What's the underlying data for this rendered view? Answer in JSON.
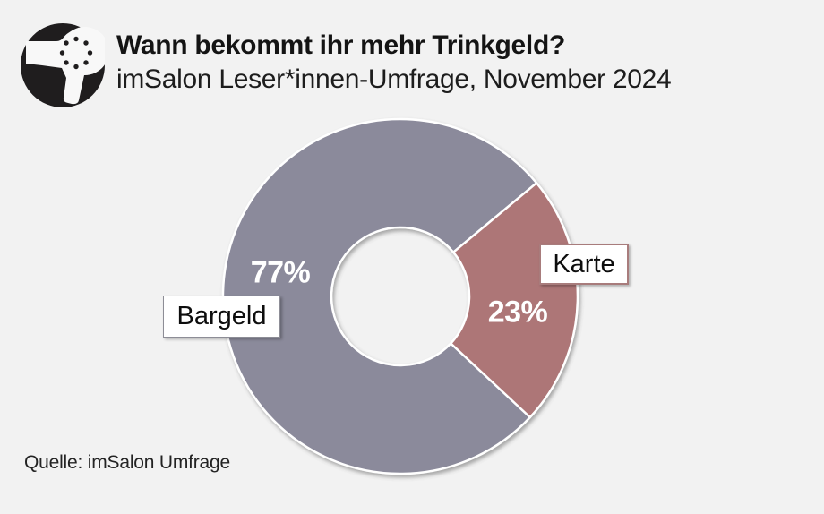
{
  "page": {
    "background": "#f2f2f2"
  },
  "logo": {
    "description": "hair dryer pictogram in black circle",
    "circle_color": "#1f1d1e",
    "glyph_color": "#f8f8f8"
  },
  "chart_data": {
    "type": "pie",
    "subtype": "doughnut",
    "title": "Wann bekommt ihr mehr Trinkgeld?",
    "subtitle": "imSalon Leser*innen-Umfrage, November 2024",
    "source": "Quelle: imSalon Umfrage",
    "categories": [
      "Bargeld",
      "Karte"
    ],
    "slices": [
      {
        "label": "Bargeld",
        "value": 77,
        "pct_label": "77%",
        "color": "#8b8a9b",
        "box_border": "#8d8d96"
      },
      {
        "label": "Karte",
        "value": 23,
        "pct_label": "23%",
        "color": "#ad7677",
        "box_border": "#a87c7c"
      }
    ],
    "layout": {
      "start_angle_deg": 133,
      "hole_ratio": 0.39,
      "separator_color": "#ffffff",
      "legend": "none",
      "value_labels": "percent inside slices, category names in outlined boxes"
    }
  }
}
